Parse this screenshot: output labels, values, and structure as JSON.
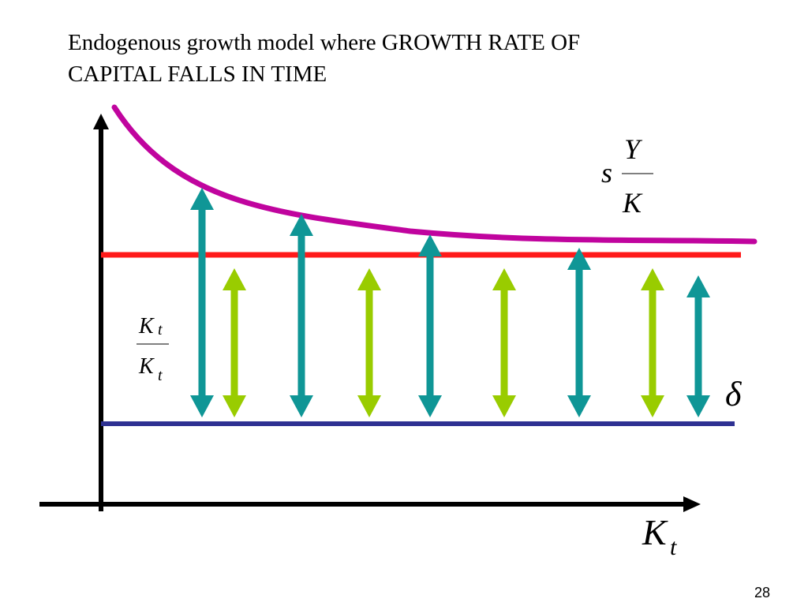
{
  "slide": {
    "title_line1": "Endogenous growth model where GROWTH RATE OF",
    "title_line2": "CAPITAL FALLS IN TIME",
    "page_number": "28"
  },
  "diagram": {
    "savings_curve_label": {
      "s": "s",
      "numerator": "Y",
      "denominator": "K"
    },
    "growth_rate_label": {
      "dot_glyph": "",
      "numerator": "K",
      "numerator_sub": "t",
      "denominator": "K",
      "denominator_sub": "t"
    },
    "delta_label": "δ",
    "x_axis_label": {
      "main": "K",
      "sub": "t"
    },
    "colors": {
      "axes": "#000000",
      "savings_curve": "#c0049e",
      "red_line": "#ff1a1a",
      "delta_line": "#2e3192",
      "teal_arrow": "#0f9696",
      "green_arrow": "#99cc00"
    }
  }
}
